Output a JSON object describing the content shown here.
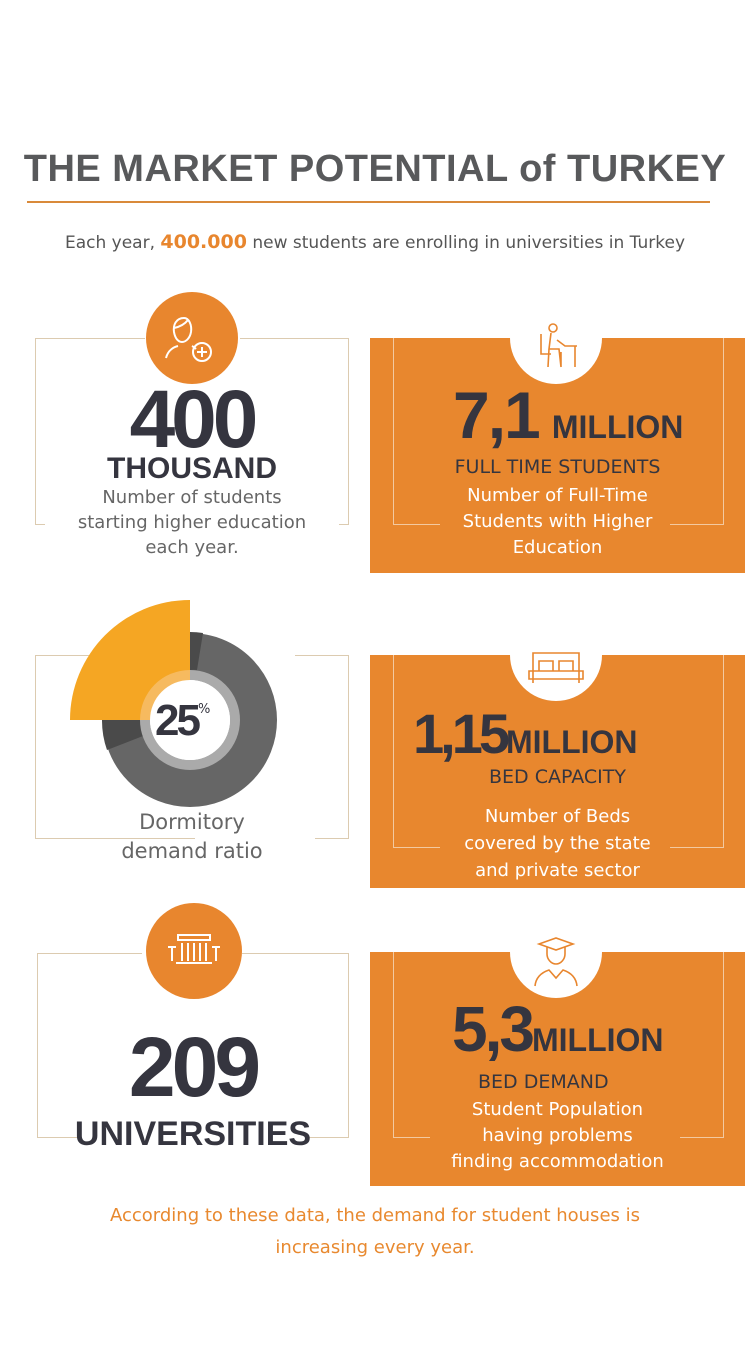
{
  "title": "THE MARKET POTENTIAL of TURKEY",
  "subtitle": {
    "before": "Each year, ",
    "highlight": "400.000",
    "after": " new students are enrolling in universities in Turkey"
  },
  "cards": [
    {
      "value": "400",
      "unit": "THOUSAND",
      "desc": [
        "Number of students",
        "starting higher education",
        "each year."
      ],
      "icon": "user-plus-icon"
    },
    {
      "value": "7,1",
      "unit": "MILLION",
      "caption": "FULL TIME STUDENTS",
      "desc": [
        "Number of Full-Time",
        "Students with Higher",
        "Education"
      ],
      "icon": "student-at-desk-icon"
    },
    {
      "value": "25",
      "unit": "%",
      "desc": [
        "Dormitory",
        "demand ratio"
      ],
      "percent": 25
    },
    {
      "value": "1,15",
      "unit": "MILLION",
      "caption": "BED CAPACITY",
      "desc": [
        "Number of Beds",
        "covered by the state",
        "and private sector"
      ],
      "icon": "bed-icon"
    },
    {
      "value": "209",
      "unit": "UNIVERSITIES",
      "icon": "university-building-icon"
    },
    {
      "value": "5,3",
      "unit": "MILLION",
      "caption": "BED DEMAND",
      "desc": [
        "Student Population",
        "having problems",
        "finding accommodation"
      ],
      "icon": "graduate-icon"
    }
  ],
  "footer": [
    "According to these data, the demand for student houses is",
    "increasing every year."
  ],
  "colors": {
    "accent": "#e8862e",
    "dark": "#35353f",
    "donut_highlight": "#f5a623",
    "donut": "#666666"
  }
}
